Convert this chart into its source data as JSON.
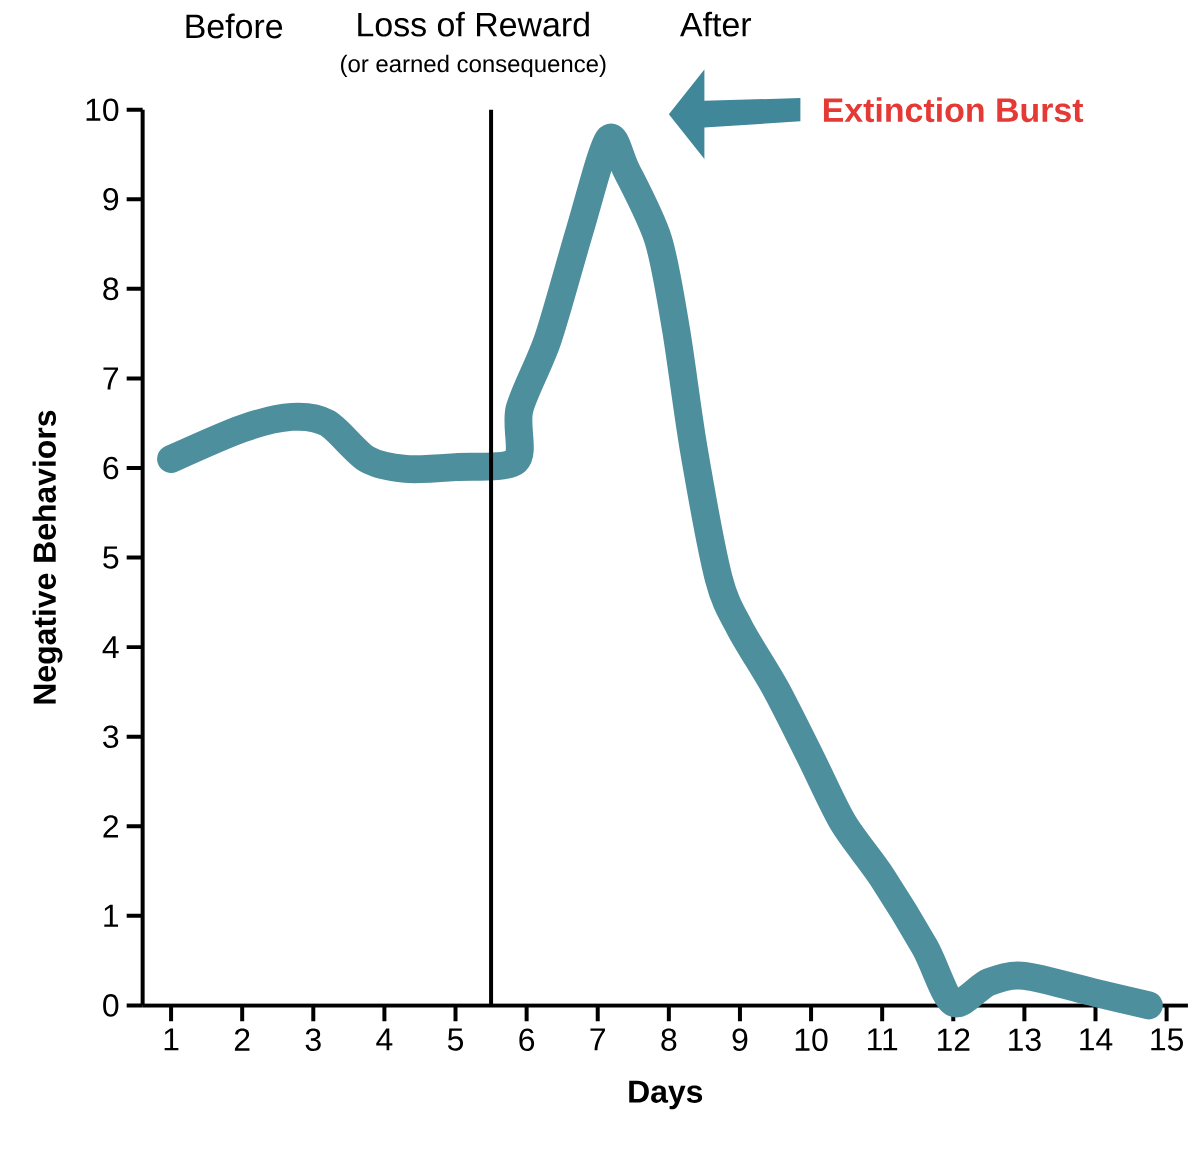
{
  "chart_data": {
    "type": "line",
    "xlabel": "Days",
    "ylabel": "Negative Behaviors",
    "xlim": [
      0.6,
      15.3
    ],
    "xticks": [
      1,
      2,
      3,
      4,
      5,
      6,
      7,
      8,
      9,
      10,
      11,
      12,
      13,
      14,
      15
    ],
    "ylim": [
      0,
      10
    ],
    "yticks": [
      0,
      1,
      2,
      3,
      4,
      5,
      6,
      7,
      8,
      9,
      10
    ],
    "grid": false,
    "series": [
      {
        "color": "#4e8f9e",
        "line_style": "solid",
        "x": [
          1,
          2,
          2.7,
          3.2,
          3.75,
          4.3,
          5,
          5.85,
          5.9,
          6.3,
          6.75,
          7.15,
          7.4,
          7.85,
          8.1,
          8.35,
          8.7,
          9,
          9.5,
          10,
          10.45,
          11,
          11.6,
          12,
          12.5,
          13,
          14,
          14.75
        ],
        "values": [
          6.1,
          6.44,
          6.57,
          6.5,
          6.1,
          5.99,
          6.01,
          6.08,
          6.66,
          7.44,
          8.66,
          9.67,
          9.33,
          8.55,
          7.55,
          6.21,
          4.77,
          4.21,
          3.54,
          2.76,
          2.04,
          1.43,
          0.65,
          0.03,
          0.26,
          0.33,
          0.14,
          0
        ]
      }
    ],
    "ref_lines": [
      {
        "axis": "x",
        "value": 5.5,
        "label": "Loss of Reward",
        "color": "#000000"
      }
    ],
    "annotations": [
      "Before",
      "(or earned consequence)",
      "After",
      "Extinction Burst"
    ]
  }
}
